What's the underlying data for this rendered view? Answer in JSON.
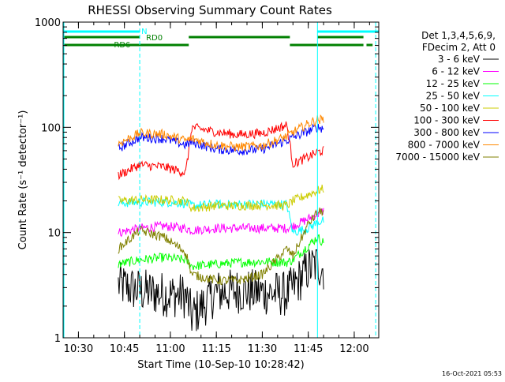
{
  "chart_data": {
    "type": "line",
    "title": "RHESSI Observing Summary Count Rates",
    "xlabel": "Start Time (10-Sep-10 10:28:42)",
    "ylabel": "Count Rate (s⁻¹ detector⁻¹)",
    "y_scale": "log",
    "ylim": [
      1,
      1000
    ],
    "y_ticks": [
      "1",
      "10",
      "100",
      "1000"
    ],
    "xlim": [
      "10:25",
      "12:08"
    ],
    "x_ticks": [
      "10:30",
      "10:45",
      "11:00",
      "11:15",
      "11:30",
      "11:45",
      "12:00"
    ],
    "timestamp": "16-Oct-2021 05:53",
    "legend": {
      "placement": "right",
      "header": [
        "Det 1,3,4,5,6,9,",
        "FDecim 2, Att 0"
      ]
    },
    "series": [
      {
        "name": "3 - 6 keV",
        "color": "#000000",
        "x": [
          "10:43",
          "10:50",
          "10:58",
          "11:05",
          "11:07",
          "11:15",
          "11:22",
          "11:30",
          "11:38",
          "11:40",
          "11:45",
          "11:48",
          "11:50"
        ],
        "y": [
          3.2,
          2.8,
          2.6,
          2.5,
          1.6,
          2.7,
          2.8,
          2.7,
          2.6,
          3.0,
          4.5,
          5.0,
          4.5
        ]
      },
      {
        "name": "6 - 12 keV",
        "color": "#ff00ff",
        "x": [
          "10:43",
          "10:50",
          "10:58",
          "11:05",
          "11:07",
          "11:15",
          "11:22",
          "11:30",
          "11:38",
          "11:40",
          "11:45",
          "11:48",
          "11:50"
        ],
        "y": [
          10.0,
          11.0,
          11.5,
          11.0,
          10.5,
          11.0,
          11.0,
          11.0,
          11.0,
          11.5,
          13.5,
          15.0,
          16.0
        ]
      },
      {
        "name": "12 - 25 keV",
        "color": "#00ff00",
        "x": [
          "10:43",
          "10:50",
          "10:58",
          "11:05",
          "11:07",
          "11:15",
          "11:22",
          "11:30",
          "11:38",
          "11:40",
          "11:45",
          "11:48",
          "11:50"
        ],
        "y": [
          5.0,
          5.5,
          5.8,
          5.5,
          4.8,
          5.0,
          5.2,
          5.3,
          5.2,
          5.5,
          7.5,
          9.0,
          8.0
        ]
      },
      {
        "name": "25 - 50 keV",
        "color": "#00ffff",
        "x": [
          "10:43",
          "10:50",
          "10:58",
          "11:05",
          "11:07",
          "11:15",
          "11:22",
          "11:30",
          "11:38",
          "11:40",
          "11:45",
          "11:48",
          "11:50"
        ],
        "y": [
          19.0,
          19.5,
          19.5,
          19.0,
          18.0,
          18.5,
          18.5,
          18.8,
          18.5,
          10.0,
          11.0,
          12.5,
          13.0
        ]
      },
      {
        "name": "50 - 100 keV",
        "color": "#cccc00",
        "x": [
          "10:43",
          "10:50",
          "10:58",
          "11:05",
          "11:07",
          "11:15",
          "11:22",
          "11:30",
          "11:38",
          "11:40",
          "11:45",
          "11:48",
          "11:50"
        ],
        "y": [
          20.0,
          20.5,
          20.5,
          20.0,
          17.0,
          18.0,
          18.0,
          18.3,
          18.0,
          20.0,
          23.0,
          25.0,
          26.0
        ]
      },
      {
        "name": "100 - 300 keV",
        "color": "#ff0000",
        "x": [
          "10:43",
          "10:50",
          "10:58",
          "11:05",
          "11:07",
          "11:15",
          "11:22",
          "11:30",
          "11:38",
          "11:40",
          "11:45",
          "11:48",
          "11:50"
        ],
        "y": [
          35.0,
          44.0,
          42.0,
          37.0,
          100.0,
          90.0,
          85.0,
          88.0,
          105.0,
          45.0,
          52.0,
          58.0,
          60.0
        ]
      },
      {
        "name": "300 - 800 keV",
        "color": "#0000ff",
        "x": [
          "10:43",
          "10:50",
          "10:58",
          "11:05",
          "11:07",
          "11:15",
          "11:22",
          "11:30",
          "11:38",
          "11:40",
          "11:45",
          "11:48",
          "11:50"
        ],
        "y": [
          63.0,
          80.0,
          78.0,
          68.0,
          72.0,
          62.0,
          60.0,
          62.0,
          75.0,
          80.0,
          92.0,
          100.0,
          98.0
        ]
      },
      {
        "name": "800 - 7000 keV",
        "color": "#ff8800",
        "x": [
          "10:43",
          "10:50",
          "10:58",
          "11:05",
          "11:07",
          "11:15",
          "11:22",
          "11:30",
          "11:38",
          "11:40",
          "11:45",
          "11:48",
          "11:50"
        ],
        "y": [
          70.0,
          88.0,
          86.0,
          75.0,
          78.0,
          68.0,
          65.0,
          67.0,
          82.0,
          90.0,
          108.0,
          118.0,
          118.0
        ]
      },
      {
        "name": "7000 - 15000 keV",
        "color": "#808000",
        "x": [
          "10:43",
          "10:50",
          "10:58",
          "11:05",
          "11:07",
          "11:15",
          "11:22",
          "11:30",
          "11:38",
          "11:40",
          "11:45",
          "11:48",
          "11:50"
        ],
        "y": [
          7.0,
          10.5,
          9.0,
          6.5,
          4.0,
          3.5,
          3.5,
          4.0,
          7.0,
          6.0,
          12.0,
          15.5,
          16.0
        ]
      }
    ],
    "annotations": [
      {
        "text": "N",
        "color": "#00ffff"
      },
      {
        "text": "RD0",
        "color": "#008000"
      },
      {
        "text": "RD6",
        "color": "#008000"
      }
    ]
  }
}
